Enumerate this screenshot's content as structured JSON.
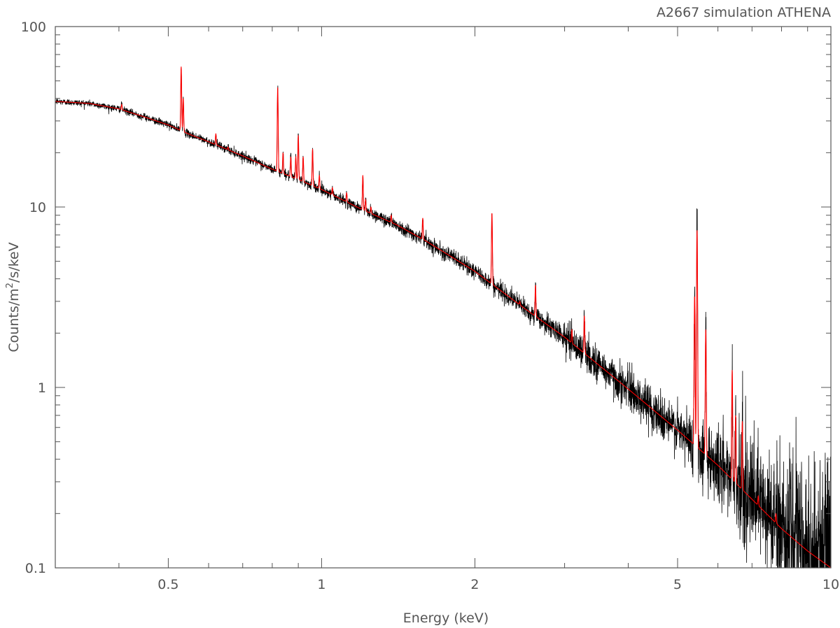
{
  "chart_data": {
    "type": "line",
    "title": "A2667 simulation ATHENA",
    "xlabel": "Energy (keV)",
    "ylabel_parts": {
      "pre": "Counts/m",
      "sup": "2",
      "post": "/s/keV"
    },
    "xscale": "log",
    "yscale": "log",
    "xlim": [
      0.3,
      10
    ],
    "ylim": [
      0.1,
      100
    ],
    "x_ticks": [
      {
        "value": 0.5,
        "label": "0.5"
      },
      {
        "value": 1,
        "label": "1"
      },
      {
        "value": 2,
        "label": "2"
      },
      {
        "value": 5,
        "label": "5"
      },
      {
        "value": 10,
        "label": "10"
      }
    ],
    "y_ticks": [
      {
        "value": 0.1,
        "label": "0.1"
      },
      {
        "value": 1,
        "label": "1"
      },
      {
        "value": 10,
        "label": "10"
      },
      {
        "value": 100,
        "label": "100"
      }
    ],
    "grid": false,
    "colors": {
      "data": "#000000",
      "model": "#ff0000",
      "axes": "#555555"
    },
    "series": [
      {
        "style": "model",
        "continuum": [
          [
            0.3,
            38.5
          ],
          [
            0.35,
            37.5
          ],
          [
            0.4,
            35
          ],
          [
            0.45,
            31.5
          ],
          [
            0.5,
            28.5
          ],
          [
            0.55,
            25.3
          ],
          [
            0.6,
            23
          ],
          [
            0.7,
            19.2
          ],
          [
            0.8,
            16.2
          ],
          [
            0.9,
            14.2
          ],
          [
            1.0,
            12.5
          ],
          [
            1.2,
            9.7
          ],
          [
            1.4,
            8.0
          ],
          [
            1.6,
            6.5
          ],
          [
            2.0,
            4.4
          ],
          [
            2.5,
            2.75
          ],
          [
            3.0,
            1.9
          ],
          [
            4.0,
            0.98
          ],
          [
            5.0,
            0.58
          ],
          [
            6.0,
            0.37
          ],
          [
            7.0,
            0.24
          ],
          [
            8.0,
            0.165
          ],
          [
            9.0,
            0.124
          ],
          [
            10.0,
            0.1
          ]
        ],
        "lines": [
          [
            0.405,
            37
          ],
          [
            0.53,
            60
          ],
          [
            0.535,
            40
          ],
          [
            0.62,
            25.5
          ],
          [
            0.655,
            21.5
          ],
          [
            0.82,
            46
          ],
          [
            0.84,
            20
          ],
          [
            0.87,
            19
          ],
          [
            0.89,
            19
          ],
          [
            0.9,
            25
          ],
          [
            0.92,
            19
          ],
          [
            0.96,
            21
          ],
          [
            0.99,
            15
          ],
          [
            1.05,
            12.8
          ],
          [
            1.12,
            12.0
          ],
          [
            1.205,
            15
          ],
          [
            1.22,
            11
          ],
          [
            1.25,
            10
          ],
          [
            1.33,
            8.5
          ],
          [
            1.37,
            9
          ],
          [
            1.46,
            7.5
          ],
          [
            1.58,
            8.7
          ],
          [
            1.95,
            4.5
          ],
          [
            2.16,
            9.3
          ],
          [
            2.45,
            3.0
          ],
          [
            2.63,
            3.7
          ],
          [
            3.1,
            2.1
          ],
          [
            3.28,
            2.5
          ],
          [
            5.4,
            3.2
          ],
          [
            5.46,
            7.5
          ],
          [
            5.68,
            2.1
          ],
          [
            6.4,
            1.25
          ],
          [
            6.5,
            0.7
          ],
          [
            6.7,
            0.65
          ],
          [
            7.2,
            0.25
          ],
          [
            7.8,
            0.2
          ]
        ]
      },
      {
        "style": "data",
        "note": "same spectrum with Poisson scatter"
      }
    ]
  }
}
